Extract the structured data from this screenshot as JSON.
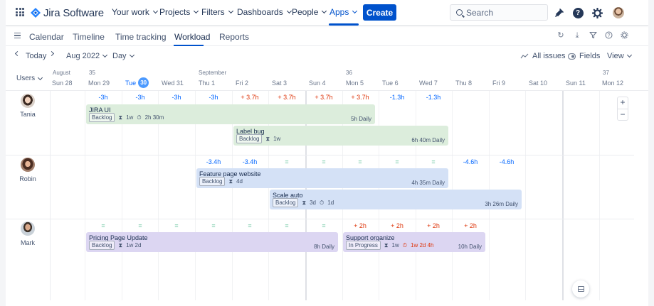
{
  "app": {
    "logo_text": "Jira Software",
    "brand_color": "#0052cc"
  },
  "nav": {
    "your_work": "Your work",
    "projects": "Projects",
    "filters": "Filters",
    "dashboards": "Dashboards",
    "people": "People",
    "apps": "Apps",
    "create": "Create",
    "search_placeholder": "Search"
  },
  "tabs": {
    "calendar": "Calendar",
    "timeline": "Timeline",
    "time_tracking": "Time tracking",
    "workload": "Workload",
    "reports": "Reports",
    "active": "Workload"
  },
  "toolbar": {
    "today": "Today",
    "period": "Aug 2022",
    "scale": "Day",
    "all_issues": "All issues",
    "fields": "Fields",
    "view": "View"
  },
  "timeline": {
    "users_label": "Users",
    "months": {
      "august": "August",
      "september": "September"
    },
    "weeks": {
      "w35": "35",
      "w36": "36",
      "w37": "37"
    },
    "days": [
      {
        "label": "Sun 28"
      },
      {
        "label": "Mon 29"
      },
      {
        "label": "Tue",
        "badge": "30",
        "today": true
      },
      {
        "label": "Wed 31"
      },
      {
        "label": "Thu 1"
      },
      {
        "label": "Fri 2"
      },
      {
        "label": "Sat 3"
      },
      {
        "label": "Sun 4"
      },
      {
        "label": "Mon 5"
      },
      {
        "label": "Tue 6"
      },
      {
        "label": "Wed 7"
      },
      {
        "label": "Thu 8"
      },
      {
        "label": "Fri 9"
      },
      {
        "label": "Sat 10"
      },
      {
        "label": "Sun 11"
      },
      {
        "label": "Mon 12"
      }
    ]
  },
  "users": [
    {
      "name": "Tania",
      "loads": [
        "-3h",
        "-3h",
        "-3h",
        "-3h",
        "+ 3.7h",
        "+ 3.7h",
        "+ 3.7h",
        "+ 3.7h",
        "-1.3h",
        "-1.3h"
      ],
      "tasks": [
        {
          "title": "JIRA UI",
          "status": "Backlog",
          "estimate": "1w",
          "spent": "2h 30m",
          "daily": "5h Daily",
          "color": "green"
        },
        {
          "title": "Label bug",
          "status": "Backlog",
          "estimate": "1w",
          "daily": "6h 40m Daily",
          "color": "green"
        }
      ]
    },
    {
      "name": "Robin",
      "loads": [
        "-3.4h",
        "-3.4h",
        "=",
        "=",
        "=",
        "=",
        "=",
        "-4.6h",
        "-4.6h"
      ],
      "tasks": [
        {
          "title": "Feature page website",
          "status": "Backlog",
          "estimate": "4d",
          "daily": "4h 35m Daily",
          "color": "blue"
        },
        {
          "title": "Scale auto",
          "status": "Backlog",
          "estimate": "3d",
          "spent": "1d",
          "daily": "3h 26m Daily",
          "color": "blue"
        }
      ]
    },
    {
      "name": "Mark",
      "loads": [
        "=",
        "=",
        "=",
        "=",
        "=",
        "=",
        "=",
        "+ 2h",
        "+ 2h",
        "+ 2h",
        "+ 2h"
      ],
      "tasks": [
        {
          "title": "Pricing Page Update",
          "status": "Backlog",
          "estimate": "1w 2d",
          "daily": "8h Daily",
          "color": "purple"
        },
        {
          "title": "Support organize",
          "status": "In Progress",
          "estimate": "1w",
          "spent": "1w 2d 4h",
          "daily": "10h Daily",
          "color": "purple"
        }
      ]
    }
  ]
}
